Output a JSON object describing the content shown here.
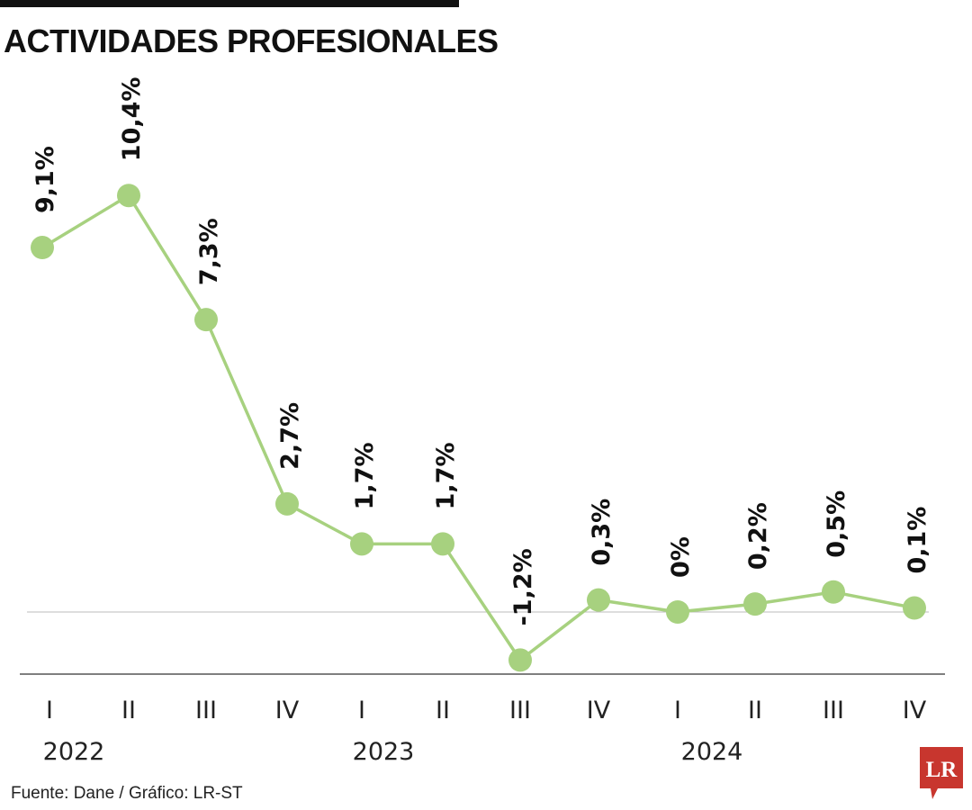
{
  "title": "ACTIVIDADES PROFESIONALES",
  "source": "Fuente: Dane / Gráfico: LR-ST",
  "logo": {
    "text": "LR",
    "color": "#c8362e"
  },
  "colors": {
    "line": "#a7d17f",
    "marker": "#a7d17f",
    "label": "#111111",
    "axis": "#555555",
    "zero_line": "#bbbbbb"
  },
  "chart_data": {
    "type": "line",
    "categories": [
      "I",
      "II",
      "III",
      "IV",
      "I",
      "II",
      "III",
      "IV",
      "I",
      "II",
      "III",
      "IV"
    ],
    "years": [
      {
        "label": "2022",
        "quarters": [
          0,
          3
        ]
      },
      {
        "label": "2023",
        "quarters": [
          4,
          7
        ]
      },
      {
        "label": "2024",
        "quarters": [
          8,
          11
        ]
      }
    ],
    "values": [
      9.1,
      10.4,
      7.3,
      2.7,
      1.7,
      1.7,
      -1.2,
      0.3,
      0,
      0.2,
      0.5,
      0.1
    ],
    "value_labels": [
      "9,1%",
      "10,4%",
      "7,3%",
      "2,7%",
      "1,7%",
      "1,7%",
      "-1,2%",
      "0,3%",
      "0%",
      "0,2%",
      "0,5%",
      "0,1%"
    ],
    "ylim": [
      -1.5,
      10.4
    ],
    "zero_line": true,
    "grid": false,
    "legend": "none",
    "xlabel": "",
    "ylabel": ""
  }
}
